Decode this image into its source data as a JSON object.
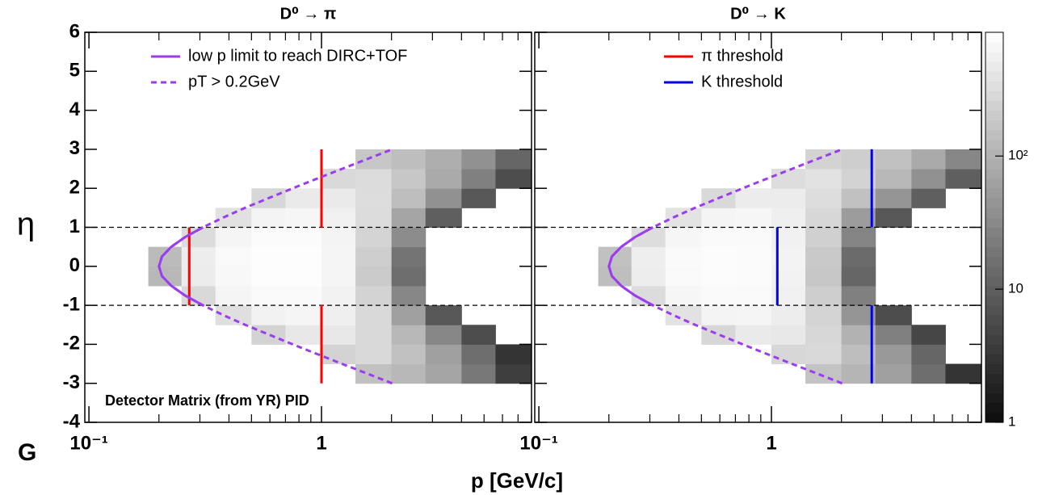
{
  "panel_label": "G",
  "chart_data": [
    {
      "type": "heatmap",
      "title": "D⁰ → π",
      "x_label": "p [GeV/c]",
      "y_label": "η",
      "annotation": "Detector Matrix (from YR) PID",
      "xlog": true,
      "xlim": [
        0.096,
        8
      ],
      "xticks": [
        {
          "value": 0.1,
          "label": "10⁻¹"
        },
        1
      ],
      "xminorticks": [
        0.2,
        0.3,
        0.4,
        0.5,
        0.6,
        0.7,
        0.8,
        0.9,
        2,
        3,
        4,
        5,
        6,
        7,
        8
      ],
      "ylim": [
        -4,
        6
      ],
      "yticks": [
        -4,
        -3,
        -2,
        -1,
        0,
        1,
        2,
        3,
        4,
        5,
        6
      ],
      "ytick_labels": true,
      "zlog": true,
      "zlim": [
        1,
        850
      ],
      "xbins": [
        0.18,
        0.25,
        0.35,
        0.5,
        0.7,
        1,
        1.4,
        2,
        2.8,
        4,
        5.6,
        8
      ],
      "ybins": [
        -3,
        -2.5,
        -2,
        -1.5,
        -1,
        -0.5,
        0,
        0.5,
        1,
        1.5,
        2,
        2.5,
        3
      ],
      "z": [
        [
          null,
          null,
          null,
          null,
          null,
          null,
          150,
          120,
          70,
          20,
          4
        ],
        [
          null,
          null,
          null,
          null,
          null,
          250,
          300,
          150,
          60,
          15,
          3
        ],
        [
          null,
          null,
          null,
          250,
          450,
          450,
          300,
          120,
          30,
          6,
          null
        ],
        [
          null,
          null,
          350,
          600,
          650,
          550,
          300,
          60,
          8,
          null,
          null
        ],
        [
          null,
          300,
          650,
          750,
          750,
          600,
          250,
          30,
          null,
          null,
          null
        ],
        [
          120,
          500,
          700,
          800,
          800,
          650,
          200,
          15,
          null,
          null,
          null
        ],
        [
          130,
          520,
          720,
          800,
          800,
          650,
          220,
          18,
          null,
          null,
          null
        ],
        [
          null,
          320,
          650,
          760,
          760,
          620,
          260,
          35,
          null,
          null,
          null
        ],
        [
          null,
          null,
          370,
          620,
          660,
          560,
          320,
          70,
          10,
          null,
          null
        ],
        [
          null,
          null,
          null,
          280,
          480,
          480,
          330,
          140,
          40,
          8,
          null
        ],
        [
          null,
          null,
          null,
          null,
          null,
          300,
          320,
          180,
          80,
          25,
          6
        ],
        [
          null,
          null,
          null,
          null,
          null,
          null,
          180,
          140,
          90,
          40,
          12
        ]
      ],
      "hlines": [
        -1,
        1
      ],
      "series": [
        {
          "name": "low p limit to reach DIRC+TOF",
          "color": "#9b3cf0",
          "dash": false,
          "x": [
            0.309,
            0.259,
            0.226,
            0.206,
            0.2,
            0.206,
            0.226,
            0.259,
            0.309
          ],
          "y": [
            -1,
            -0.75,
            -0.5,
            -0.25,
            0,
            0.25,
            0.5,
            0.75,
            1
          ]
        },
        {
          "name": "pT > 0.2GeV",
          "color": "#9b3cf0",
          "dash": true,
          "x": [
            2.014,
            1.571,
            1.226,
            0.959,
            0.752,
            0.593,
            0.47,
            0.378,
            0.309,
            0.259,
            0.226,
            0.206,
            0.2,
            0.206,
            0.226,
            0.259,
            0.309,
            0.378,
            0.47,
            0.593,
            0.752,
            0.959,
            1.226,
            1.571,
            2.014
          ],
          "y": [
            -3,
            -2.75,
            -2.5,
            -2.25,
            -2,
            -1.75,
            -1.5,
            -1.25,
            -1,
            -0.75,
            -0.5,
            -0.25,
            0,
            0.25,
            0.5,
            0.75,
            1,
            1.25,
            1.5,
            1.75,
            2,
            2.25,
            2.5,
            2.75,
            3
          ]
        }
      ],
      "thresholds": [
        {
          "color": "#ff0000",
          "segments": [
            {
              "x": 0.27,
              "y": [
                -1,
                1
              ]
            },
            {
              "x": 1,
              "y": [
                1,
                3
              ]
            },
            {
              "x": 1,
              "y": [
                -3,
                -1
              ]
            }
          ]
        }
      ]
    },
    {
      "type": "heatmap",
      "title": "D⁰ → K",
      "xlog": true,
      "xlim": [
        0.096,
        8
      ],
      "xticks": [
        {
          "value": 0.1,
          "label": "10⁻¹"
        },
        1
      ],
      "xminorticks": [
        0.2,
        0.3,
        0.4,
        0.5,
        0.6,
        0.7,
        0.8,
        0.9,
        2,
        3,
        4,
        5,
        6,
        7,
        8
      ],
      "ylim": [
        -4,
        6
      ],
      "yticks": [
        -4,
        -3,
        -2,
        -1,
        0,
        1,
        2,
        3,
        4,
        5,
        6
      ],
      "ytick_labels": false,
      "zlog": true,
      "zlim": [
        1,
        850
      ],
      "zticks": [
        1,
        10,
        {
          "value": 100,
          "label": "10²"
        }
      ],
      "xbins": [
        0.18,
        0.25,
        0.35,
        0.5,
        0.7,
        1,
        1.4,
        2,
        2.8,
        4,
        5.6,
        8
      ],
      "ybins": [
        -3,
        -2.5,
        -2,
        -1.5,
        -1,
        -0.5,
        0,
        0.5,
        1,
        1.5,
        2,
        2.5,
        3
      ],
      "z": [
        [
          null,
          null,
          null,
          null,
          null,
          null,
          160,
          110,
          60,
          15,
          3
        ],
        [
          null,
          null,
          null,
          null,
          null,
          280,
          300,
          140,
          50,
          12,
          null
        ],
        [
          null,
          null,
          null,
          280,
          470,
          450,
          280,
          100,
          25,
          5,
          null
        ],
        [
          null,
          null,
          380,
          620,
          650,
          520,
          260,
          45,
          6,
          null,
          null
        ],
        [
          null,
          320,
          660,
          740,
          720,
          560,
          220,
          25,
          null,
          null,
          null
        ],
        [
          140,
          520,
          720,
          780,
          760,
          600,
          180,
          12,
          null,
          null,
          null
        ],
        [
          150,
          530,
          730,
          790,
          770,
          610,
          190,
          14,
          null,
          null,
          null
        ],
        [
          null,
          330,
          670,
          750,
          730,
          570,
          230,
          28,
          null,
          null,
          null
        ],
        [
          null,
          null,
          390,
          630,
          660,
          540,
          280,
          55,
          8,
          null,
          null
        ],
        [
          null,
          null,
          null,
          300,
          500,
          500,
          330,
          150,
          45,
          10,
          null
        ],
        [
          null,
          null,
          null,
          null,
          null,
          330,
          380,
          250,
          120,
          40,
          10
        ],
        [
          null,
          null,
          null,
          null,
          null,
          null,
          250,
          220,
          150,
          80,
          30
        ]
      ],
      "hlines": [
        -1,
        1
      ],
      "series": [
        {
          "color": "#9b3cf0",
          "dash": false,
          "x": [
            0.309,
            0.259,
            0.226,
            0.206,
            0.2,
            0.206,
            0.226,
            0.259,
            0.309
          ],
          "y": [
            -1,
            -0.75,
            -0.5,
            -0.25,
            0,
            0.25,
            0.5,
            0.75,
            1
          ]
        },
        {
          "color": "#9b3cf0",
          "dash": true,
          "x": [
            2.014,
            1.571,
            1.226,
            0.959,
            0.752,
            0.593,
            0.47,
            0.378,
            0.309,
            0.259,
            0.226,
            0.206,
            0.2,
            0.206,
            0.226,
            0.259,
            0.309,
            0.378,
            0.47,
            0.593,
            0.752,
            0.959,
            1.226,
            1.571,
            2.014
          ],
          "y": [
            -3,
            -2.75,
            -2.5,
            -2.25,
            -2,
            -1.75,
            -1.5,
            -1.25,
            -1,
            -0.75,
            -0.5,
            -0.25,
            0,
            0.25,
            0.5,
            0.75,
            1,
            1.25,
            1.5,
            1.75,
            2,
            2.25,
            2.5,
            2.75,
            3
          ]
        }
      ],
      "thresholds": [
        {
          "name": "π threshold",
          "color": "#ff0000",
          "segments": []
        },
        {
          "name": "K threshold",
          "color": "#0000ee",
          "segments": [
            {
              "x": 1.06,
              "y": [
                -1,
                1
              ]
            },
            {
              "x": 2.7,
              "y": [
                1,
                3
              ]
            },
            {
              "x": 2.7,
              "y": [
                -3,
                -1
              ]
            }
          ]
        }
      ]
    }
  ]
}
